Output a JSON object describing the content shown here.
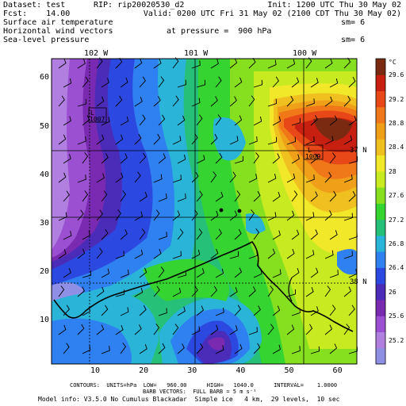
{
  "header": {
    "dataset": "Dataset: test",
    "rip": "RIP: rip20020530_d2",
    "init": "Init: 1200 UTC Thu 30 May 02",
    "fcst": "Fcst:    14.00",
    "valid": "Valid: 0200 UTC Fri 31 May 02 (2100 CDT Thu 30 May 02)",
    "field1": "Surface air temperature",
    "field1_sm": "sm= 6",
    "field2": "Horizontal wind vectors",
    "field2_pressure": "at pressure =  900 hPa",
    "field3": "Sea-level pressure",
    "field3_sm": "sm= 6"
  },
  "map": {
    "lon_labels": [
      "102 W",
      "101 W",
      "100 W"
    ],
    "lat_labels": [
      "37 N",
      "38 N"
    ],
    "x_ticks": [
      "10",
      "20",
      "30",
      "40",
      "50",
      "60"
    ],
    "y_ticks": [
      "10",
      "20",
      "30",
      "40",
      "50",
      "60"
    ],
    "x_range": [
      1,
      64
    ],
    "y_range": [
      1,
      64
    ],
    "pressure_lows": [
      {
        "label": "L",
        "value": "1007",
        "x": 9.5,
        "y": 52
      }
    ],
    "pressure_highs": [
      {
        "label": "L",
        "value": "1009",
        "x": 55,
        "y": 45
      }
    ]
  },
  "colorbar": {
    "unit": "°C",
    "labels": [
      "25.2",
      "25.6",
      "26",
      "26.4",
      "26.8",
      "27.2",
      "27.6",
      "28",
      "28.4",
      "28.8",
      "29.2",
      "29.6"
    ],
    "colors": [
      "#8f8fe6",
      "#b07fe0",
      "#9a50d0",
      "#7a2ab0",
      "#4a2cb8",
      "#2b49e0",
      "#2f80f0",
      "#29b4d8",
      "#26c078",
      "#36d430",
      "#86e020",
      "#c8ea20",
      "#f0e828",
      "#f0c020",
      "#f0a018",
      "#f07818",
      "#e84818",
      "#c82010",
      "#7a2a10"
    ]
  },
  "footer": {
    "contours": "CONTOURS:  UNITS=hPa  LOW=   960.00      HIGH=   1040.0      INTERVAL=    1.0000",
    "barbs": "BARB VECTORS:  FULL BARB = 5 m s⁻¹",
    "model": "Model info: V3.5.0 No Cumulus Blackadar  Simple ice   4 km,  29 levels,  10 sec"
  }
}
